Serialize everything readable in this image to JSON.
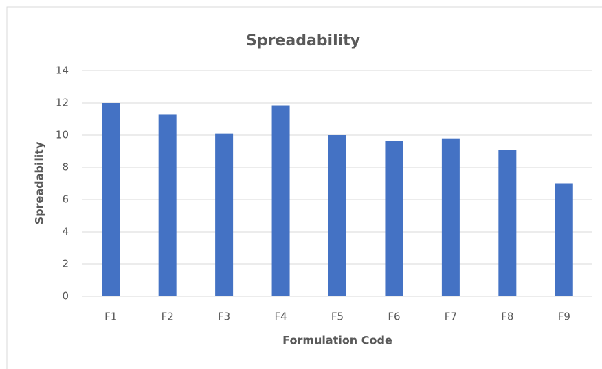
{
  "chart_data": {
    "type": "bar",
    "title": "Spreadability",
    "x_label": "Formulation Code",
    "y_label": "Spreadability",
    "categories": [
      "F1",
      "F2",
      "F3",
      "F4",
      "F5",
      "F6",
      "F7",
      "F8",
      "F9"
    ],
    "values": [
      12,
      11.3,
      10.1,
      11.85,
      10,
      9.65,
      9.8,
      9.1,
      7
    ],
    "color": "#4472c4",
    "ylim": [
      0,
      14
    ],
    "yticks": [
      0,
      2,
      4,
      6,
      8,
      10,
      12,
      14
    ],
    "grid": true
  }
}
